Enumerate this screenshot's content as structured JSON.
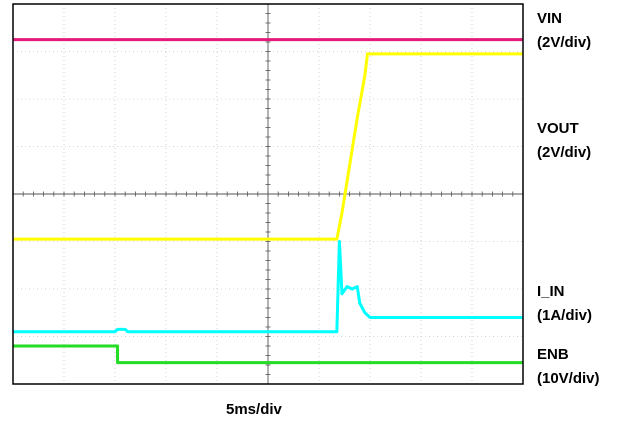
{
  "chart_data": {
    "type": "line",
    "title": "",
    "xlabel": "5ms/div",
    "ylabel": "",
    "grid": true,
    "x_divisions": 10,
    "y_divisions": 8,
    "x_unit_per_div": "5ms",
    "xlim": [
      0,
      10
    ],
    "ylim": [
      0,
      8
    ],
    "series": [
      {
        "name": "VIN",
        "scale": "(2V/div)",
        "color": "#e6197a",
        "points": [
          [
            0,
            7.25
          ],
          [
            10,
            7.25
          ]
        ]
      },
      {
        "name": "VOUT",
        "scale": "(2V/div)",
        "color": "#ffff00",
        "points": [
          [
            0,
            3.05
          ],
          [
            6.35,
            3.05
          ],
          [
            6.45,
            3.6
          ],
          [
            6.6,
            4.6
          ],
          [
            6.75,
            5.6
          ],
          [
            6.9,
            6.5
          ],
          [
            6.95,
            6.95
          ],
          [
            10,
            6.95
          ]
        ]
      },
      {
        "name": "I_IN",
        "scale": "(1A/div)",
        "color": "#00ffff",
        "points": [
          [
            0,
            1.1
          ],
          [
            2.0,
            1.1
          ],
          [
            2.05,
            1.15
          ],
          [
            2.2,
            1.15
          ],
          [
            2.25,
            1.1
          ],
          [
            6.35,
            1.1
          ],
          [
            6.4,
            3.0
          ],
          [
            6.45,
            1.9
          ],
          [
            6.55,
            2.05
          ],
          [
            6.65,
            2.0
          ],
          [
            6.75,
            2.05
          ],
          [
            6.8,
            1.7
          ],
          [
            6.9,
            1.5
          ],
          [
            7.0,
            1.4
          ],
          [
            10,
            1.4
          ]
        ]
      },
      {
        "name": "ENB",
        "scale": "(10V/div)",
        "color": "#22dd22",
        "points": [
          [
            0,
            0.8
          ],
          [
            2.05,
            0.8
          ],
          [
            2.05,
            0.45
          ],
          [
            10,
            0.45
          ]
        ]
      }
    ]
  }
}
